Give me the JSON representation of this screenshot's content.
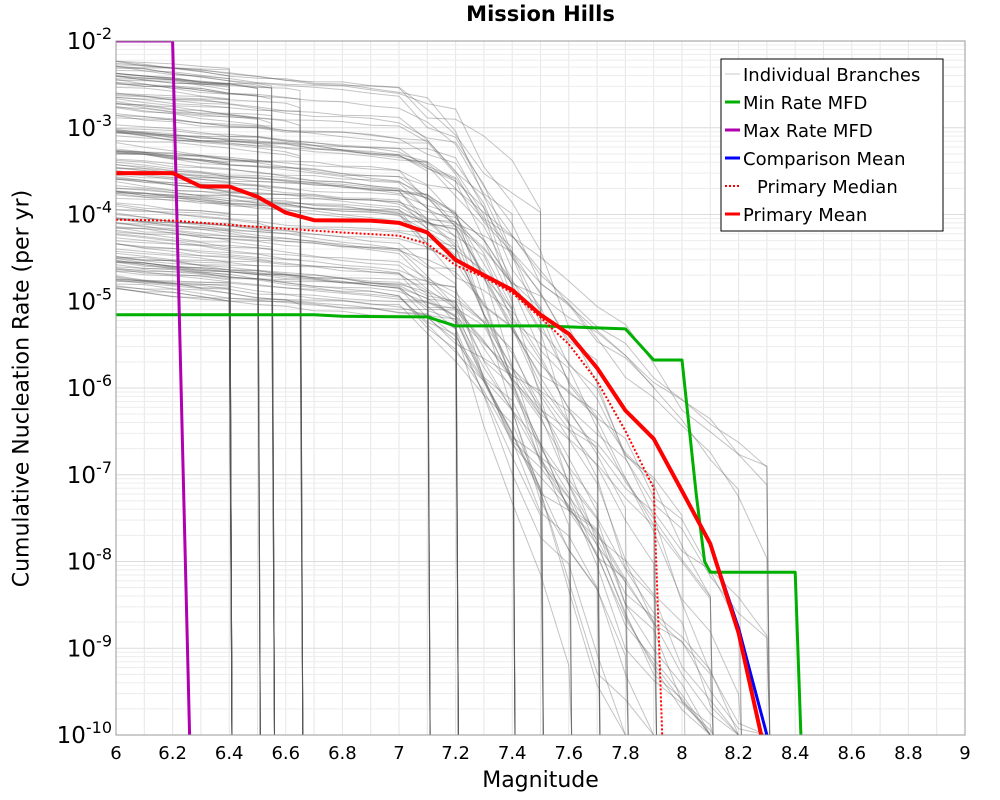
{
  "chart_data": {
    "type": "line",
    "title": "Mission Hills",
    "xlabel": "Magnitude",
    "ylabel": "Cumulative Nucleation Rate (per yr)",
    "xlim": [
      6,
      9
    ],
    "ylim": [
      1e-10,
      0.01
    ],
    "yscale": "log",
    "grid": true,
    "legend_position": "top-right",
    "x_ticks": [
      6,
      6.2,
      6.4,
      6.6,
      6.8,
      7,
      7.2,
      7.4,
      7.6,
      7.8,
      8,
      8.2,
      8.4,
      8.6,
      8.8,
      9
    ],
    "x_tick_labels": [
      "6",
      "6.2",
      "6.4",
      "6.6",
      "6.8",
      "7",
      "7.2",
      "7.4",
      "7.6",
      "7.8",
      "8",
      "8.2",
      "8.4",
      "8.6",
      "8.8",
      "9"
    ],
    "y_ticks": [
      {
        "value": 0.01,
        "base": "10",
        "exp": "-2"
      },
      {
        "value": 0.001,
        "base": "10",
        "exp": "-3"
      },
      {
        "value": 0.0001,
        "base": "10",
        "exp": "-4"
      },
      {
        "value": 1e-05,
        "base": "10",
        "exp": "-5"
      },
      {
        "value": 1e-06,
        "base": "10",
        "exp": "-6"
      },
      {
        "value": 1e-07,
        "base": "10",
        "exp": "-7"
      },
      {
        "value": 1e-08,
        "base": "10",
        "exp": "-8"
      },
      {
        "value": 1e-09,
        "base": "10",
        "exp": "-9"
      },
      {
        "value": 1e-10,
        "base": "10",
        "exp": "-10"
      }
    ],
    "series": [
      {
        "name": "Min Rate MFD",
        "color": "#00b000",
        "style": "solid",
        "width": 3,
        "points": [
          [
            6.0,
            7e-06
          ],
          [
            6.7,
            7e-06
          ],
          [
            6.8,
            6.7e-06
          ],
          [
            7.1,
            6.6e-06
          ],
          [
            7.2,
            5.2e-06
          ],
          [
            7.5,
            5.2e-06
          ],
          [
            7.8,
            4.8e-06
          ],
          [
            7.9,
            2.1e-06
          ],
          [
            8.0,
            2.1e-06
          ],
          [
            8.05,
            6e-08
          ],
          [
            8.08,
            1e-08
          ],
          [
            8.1,
            7.5e-09
          ],
          [
            8.4,
            7.5e-09
          ],
          [
            8.42,
            1e-10
          ]
        ]
      },
      {
        "name": "Max Rate MFD",
        "color": "#b000b0",
        "style": "solid",
        "width": 3,
        "points": [
          [
            6.0,
            0.01
          ],
          [
            6.2,
            0.01
          ],
          [
            6.26,
            1e-10
          ]
        ]
      },
      {
        "name": "Comparison Mean",
        "color": "#0000ff",
        "style": "solid",
        "width": 3,
        "points": [
          [
            6.0,
            0.0003
          ],
          [
            6.2,
            0.0003
          ],
          [
            6.3,
            0.00021
          ],
          [
            6.4,
            0.00021
          ],
          [
            6.5,
            0.00016
          ],
          [
            6.6,
            0.000105
          ],
          [
            6.7,
            8.6e-05
          ],
          [
            6.9,
            8.5e-05
          ],
          [
            7.0,
            8e-05
          ],
          [
            7.1,
            6.2e-05
          ],
          [
            7.2,
            3e-05
          ],
          [
            7.3,
            2e-05
          ],
          [
            7.4,
            1.35e-05
          ],
          [
            7.5,
            7e-06
          ],
          [
            7.6,
            4.2e-06
          ],
          [
            7.7,
            1.7e-06
          ],
          [
            7.8,
            5.5e-07
          ],
          [
            7.9,
            2.6e-07
          ],
          [
            8.0,
            6.5e-08
          ],
          [
            8.1,
            1.6e-08
          ],
          [
            8.2,
            1.7e-09
          ],
          [
            8.3,
            1e-10
          ]
        ]
      },
      {
        "name": "Primary Median",
        "color": "#ff0000",
        "style": "dotted",
        "width": 2,
        "points": [
          [
            6.0,
            8.7e-05
          ],
          [
            6.2,
            8.5e-05
          ],
          [
            6.5,
            7.2e-05
          ],
          [
            6.8,
            6.2e-05
          ],
          [
            7.0,
            5.7e-05
          ],
          [
            7.1,
            4.6e-05
          ],
          [
            7.2,
            2.6e-05
          ],
          [
            7.3,
            1.9e-05
          ],
          [
            7.4,
            1.25e-05
          ],
          [
            7.5,
            6.5e-06
          ],
          [
            7.6,
            3.2e-06
          ],
          [
            7.7,
            1.2e-06
          ],
          [
            7.8,
            3.2e-07
          ],
          [
            7.9,
            7e-08
          ],
          [
            7.93,
            1e-10
          ]
        ]
      },
      {
        "name": "Primary Mean",
        "color": "#ff0000",
        "style": "solid",
        "width": 4,
        "points": [
          [
            6.0,
            0.0003
          ],
          [
            6.2,
            0.0003
          ],
          [
            6.3,
            0.00021
          ],
          [
            6.4,
            0.00021
          ],
          [
            6.5,
            0.00016
          ],
          [
            6.6,
            0.000105
          ],
          [
            6.7,
            8.6e-05
          ],
          [
            6.9,
            8.5e-05
          ],
          [
            7.0,
            8e-05
          ],
          [
            7.1,
            6.2e-05
          ],
          [
            7.2,
            3e-05
          ],
          [
            7.3,
            2e-05
          ],
          [
            7.4,
            1.35e-05
          ],
          [
            7.5,
            7e-06
          ],
          [
            7.6,
            4.2e-06
          ],
          [
            7.7,
            1.7e-06
          ],
          [
            7.8,
            5.5e-07
          ],
          [
            7.9,
            2.6e-07
          ],
          [
            8.0,
            6.5e-08
          ],
          [
            8.1,
            1.6e-08
          ],
          [
            8.2,
            1.5e-09
          ],
          [
            8.28,
            1e-10
          ]
        ]
      }
    ],
    "individual_branches": {
      "name": "Individual Branches",
      "color": "#555555",
      "count": 160,
      "plateau_range": [
        1.2e-05,
        0.006
      ],
      "note_range": "branch rates span roughly 1e-5 to 6e-3 at M6.0 and terminate between M6.4 and M8.4"
    },
    "legend": [
      {
        "label": "Individual Branches",
        "color": "#c8c8c8",
        "style": "solid"
      },
      {
        "label": "Min Rate MFD",
        "color": "#00b000",
        "style": "solid"
      },
      {
        "label": "Max Rate MFD",
        "color": "#b000b0",
        "style": "solid"
      },
      {
        "label": "Comparison Mean",
        "color": "#0000ff",
        "style": "solid"
      },
      {
        "label": "Primary Median",
        "color": "#ff0000",
        "style": "dotted"
      },
      {
        "label": "Primary Mean",
        "color": "#ff0000",
        "style": "solid"
      }
    ]
  }
}
